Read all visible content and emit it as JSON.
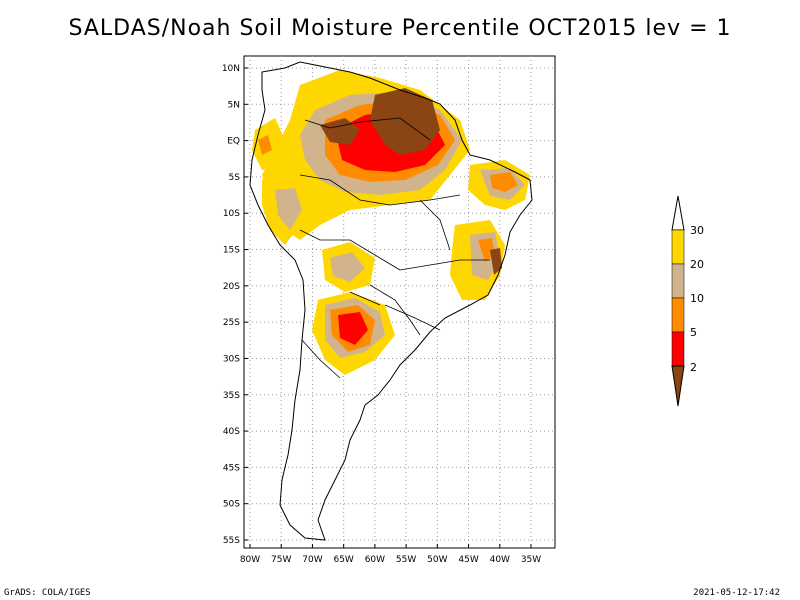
{
  "title": "SALDAS/Noah Soil Moisture Percentile OCT2015 lev = 1",
  "footer_left": "GrADS: COLA/IGES",
  "footer_right": "2021-05-12-17:42",
  "lat_labels": [
    "10N",
    "5N",
    "EQ",
    "5S",
    "10S",
    "15S",
    "20S",
    "25S",
    "30S",
    "35S",
    "40S",
    "45S",
    "50S",
    "55S"
  ],
  "lon_labels": [
    "80W",
    "75W",
    "70W",
    "65W",
    "60W",
    "55W",
    "50W",
    "45W",
    "40W",
    "35W"
  ],
  "colorbar": {
    "labels": [
      "30",
      "20",
      "10",
      "5",
      "2"
    ],
    "colors": {
      "above30": "#ffffff",
      "c20_30": "#ffd700",
      "c10_20": "#d2b48c",
      "c5_10": "#ff8c00",
      "c2_5": "#ff0000",
      "below2": "#8b4513"
    }
  },
  "colors": {
    "grid": "#999999",
    "border": "#000000"
  }
}
